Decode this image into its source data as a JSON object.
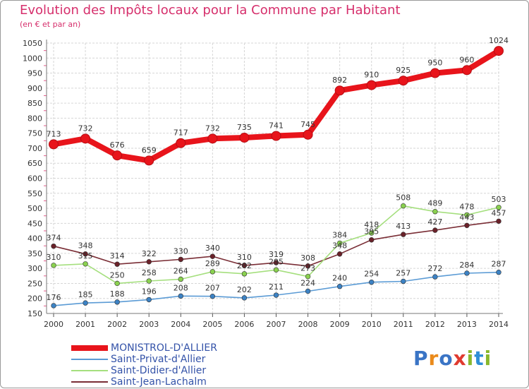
{
  "header": {
    "title": "Evolution des Impôts locaux pour la Commune par Habitant",
    "subtitle": "(en € et par an)"
  },
  "brand": {
    "logo_text": "Proxiti",
    "letter_colors": [
      "#3a74c5",
      "#ea8a1b",
      "#3a74c5",
      "#e03a2f",
      "#89b82d",
      "#2f8fd6",
      "#89b82d"
    ]
  },
  "chart_data": {
    "type": "line",
    "title": "Evolution des Impôts locaux pour la Commune par Habitant",
    "ylabel": "(en € et par an)",
    "xlabel": "",
    "x": [
      "2000",
      "2001",
      "2002",
      "2003",
      "2004",
      "2005",
      "2006",
      "2007",
      "2008",
      "2009",
      "2010",
      "2011",
      "2012",
      "2013",
      "2014"
    ],
    "ylim": [
      150,
      1050
    ],
    "yticks": [
      150,
      200,
      250,
      300,
      350,
      400,
      450,
      500,
      550,
      600,
      650,
      700,
      750,
      800,
      850,
      900,
      950,
      1000,
      1050
    ],
    "legend_position": "bottom-left",
    "series": [
      {
        "name": "MONISTROL-D'ALLIER",
        "color": "#e8141b",
        "bold": true,
        "values": [
          713,
          732,
          676,
          659,
          717,
          732,
          735,
          741,
          745,
          892,
          910,
          925,
          950,
          960,
          1024
        ]
      },
      {
        "name": "Saint-Privat-d'Allier",
        "color": "#5b9bd5",
        "marker": "#3c82c4",
        "bold": false,
        "values": [
          176,
          185,
          188,
          196,
          208,
          207,
          202,
          211,
          224,
          240,
          254,
          257,
          272,
          284,
          287
        ]
      },
      {
        "name": "Saint-Didier-d'Allier",
        "color": "#a5df7e",
        "marker": "#8ad14f",
        "bold": false,
        "values": [
          310,
          315,
          250,
          258,
          264,
          289,
          282,
          295,
          273,
          384,
          418,
          508,
          489,
          478,
          503
        ]
      },
      {
        "name": "Saint-Jean-Lachalm",
        "color": "#7a2e36",
        "marker": "#6a2129",
        "bold": false,
        "values": [
          374,
          348,
          314,
          322,
          330,
          340,
          310,
          319,
          308,
          348,
          395,
          413,
          427,
          443,
          457
        ]
      }
    ],
    "data_labels": [
      {
        "series": "MONISTROL-D'ALLIER",
        "labels": [
          "713",
          "732",
          "676",
          "659",
          "717",
          "732",
          "735",
          "741",
          "745",
          "892",
          "910",
          "925",
          "950",
          "960",
          "1024"
        ]
      },
      {
        "series": "Saint-Privat-d'Allier",
        "labels": [
          "176",
          "185",
          "188",
          "196",
          "208",
          "207",
          "202",
          "211",
          "224",
          "240",
          "254",
          "257",
          "272",
          "284",
          "287"
        ]
      },
      {
        "series": "Saint-Didier-d'Allier",
        "labels": [
          "310",
          "315",
          "250",
          "258",
          "264",
          "289",
          "282",
          "295",
          "273",
          "384",
          "418",
          "508",
          "489",
          "478",
          "503"
        ]
      },
      {
        "series": "Saint-Jean-Lachalm",
        "labels": [
          "374",
          "348",
          "314",
          "322",
          "330",
          "340",
          "310",
          "319",
          "308",
          "348",
          "395",
          "413",
          "427",
          "443",
          "457"
        ]
      }
    ]
  }
}
